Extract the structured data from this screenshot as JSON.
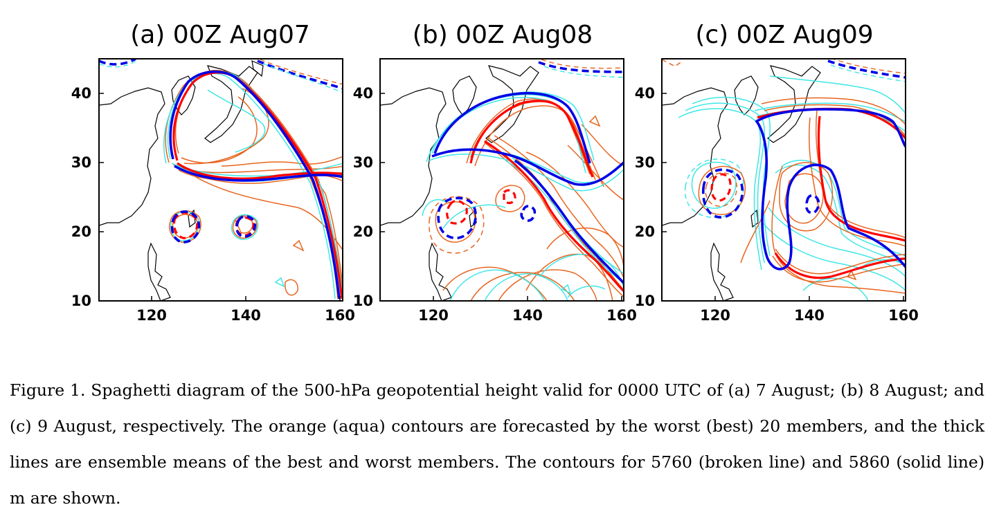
{
  "figure": {
    "panels": [
      {
        "title": "(a) 00Z Aug07"
      },
      {
        "title": "(b) 00Z Aug08"
      },
      {
        "title": "(c) 00Z Aug09"
      }
    ],
    "lon_ticks": [
      "120",
      "140",
      "160"
    ],
    "lat_ticks": [
      "40",
      "30",
      "20",
      "10"
    ],
    "colors": {
      "worst": "#e8641e",
      "best": "#3de6e6",
      "worst_mean": "#ff0000",
      "best_mean": "#0000e6",
      "coast": "#000000"
    }
  },
  "caption": "Figure 1. Spaghetti diagram of the 500-hPa geopotential height valid for 0000 UTC of (a) 7 August; (b) 8 August; and (c) 9 August, respectively. The orange (aqua) contours are forecasted by the worst (best) 20 members, and the thick lines are ensemble means of the best and worst members. The contours for 5760 (broken line) and 5860 (solid line) m are shown."
}
